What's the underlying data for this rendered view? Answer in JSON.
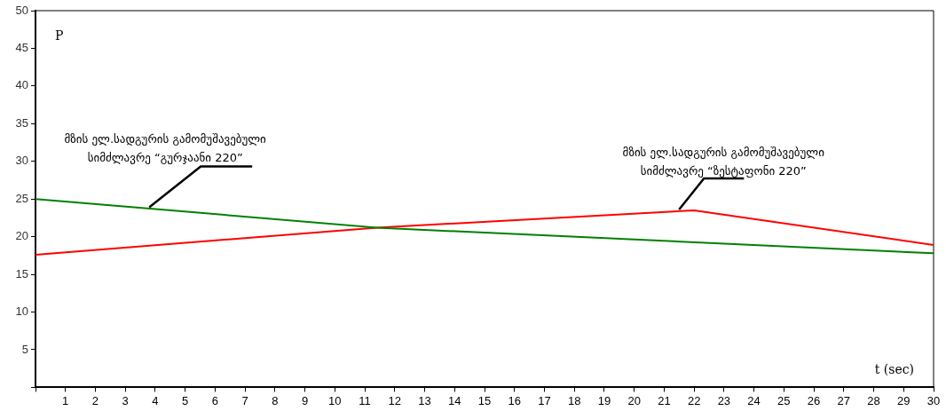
{
  "chart_data": {
    "type": "line",
    "xlabel": "t (sec)",
    "ylabel": "P",
    "xlim": [
      0,
      30
    ],
    "xticks": [
      {
        "value": 0,
        "label": null
      },
      1,
      2,
      3,
      4,
      5,
      6,
      7,
      8,
      9,
      10,
      11,
      12,
      13,
      14,
      15,
      16,
      17,
      18,
      19,
      20,
      21,
      22,
      23,
      24,
      25,
      26,
      27,
      28,
      29,
      30
    ],
    "ylim": [
      0,
      50
    ],
    "yticks": [
      {
        "value": 0,
        "label": null
      },
      5,
      10,
      15,
      20,
      25,
      30,
      35,
      40,
      45,
      50
    ],
    "grid": false,
    "legend": false,
    "marker": "none",
    "line_style": "solid",
    "series": [
      {
        "color": "#008000",
        "x": [
          0,
          11.4,
          30
        ],
        "values": [
          25,
          21.2,
          17.8
        ]
      },
      {
        "color": "#ff0000",
        "x": [
          0,
          11.4,
          22,
          30
        ],
        "values": [
          17.6,
          21.2,
          23.5,
          18.9
        ]
      }
    ],
    "annotations": [
      {
        "text": "მზის ელ.სადგურის გამომუშავებული\nსიმძლავრე “გურჯაანი 220”",
        "x": 3.8,
        "y": 23.9
      },
      {
        "text": "მზის ელ.სადგურის გამომუშავებული\nსიმძლავრე “ზესტაფონი 220”",
        "x": 21.5,
        "y": 23.6
      }
    ]
  }
}
